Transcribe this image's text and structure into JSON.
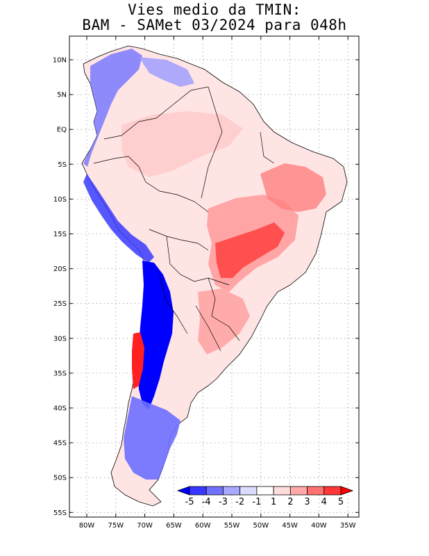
{
  "title_line1": "Vies medio da TMIN:",
  "title_line2": "BAM - SAMet 03/2024  para 048h",
  "map": {
    "lat_ticks": [
      "10N",
      "5N",
      "EQ",
      "5S",
      "10S",
      "15S",
      "20S",
      "25S",
      "30S",
      "35S",
      "40S",
      "45S",
      "50S",
      "55S"
    ],
    "lon_ticks": [
      "80W",
      "75W",
      "70W",
      "65W",
      "60W",
      "55W",
      "50W",
      "45W",
      "40W",
      "35W"
    ],
    "gridlines": true,
    "coastline_color": "#000000"
  },
  "colorbar": {
    "labels": [
      "-5",
      "-4",
      "-3",
      "-2",
      "-1",
      "1",
      "2",
      "3",
      "4",
      "5"
    ],
    "colors": [
      "#0000ff",
      "#3737ff",
      "#7070ff",
      "#a8a8ff",
      "#dcdcff",
      "#ffffff",
      "#ffdcdc",
      "#ffa8a8",
      "#ff7070",
      "#ff3737",
      "#ff0000"
    ]
  }
}
